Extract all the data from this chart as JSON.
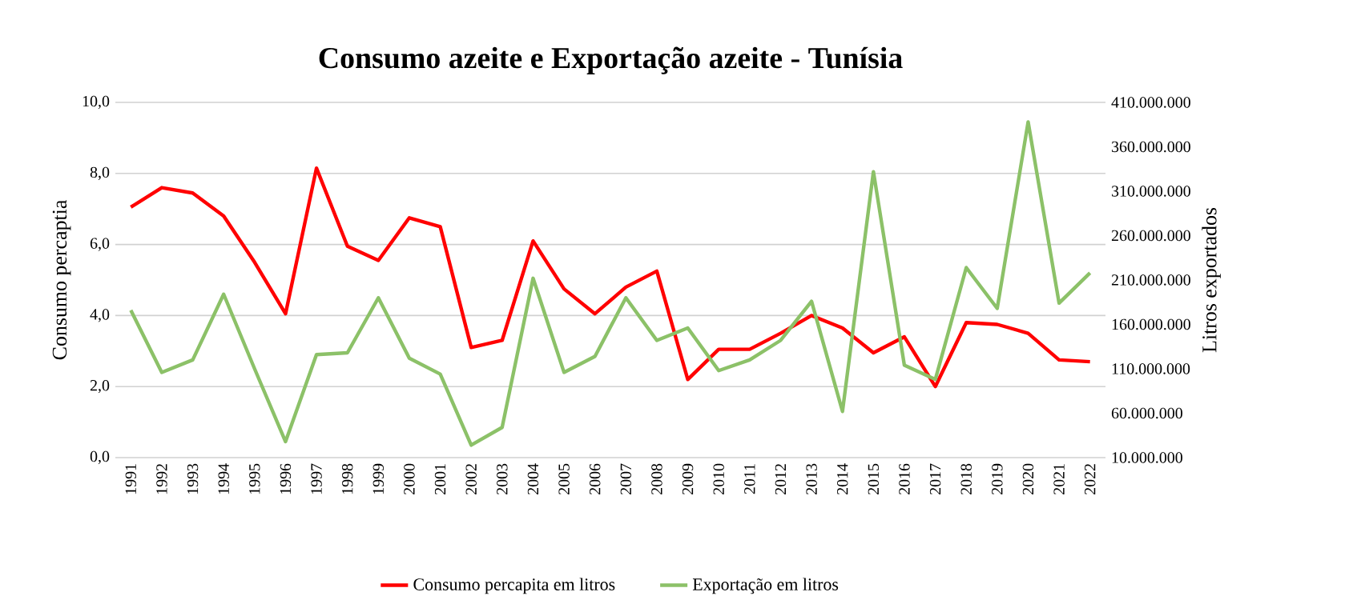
{
  "chart_data": {
    "type": "line",
    "title": "Consumo azeite e Exportação azeite - Tunísia",
    "ylabel": "Consumo percaptia",
    "y2label": "Litros exportados",
    "categories": [
      "1991",
      "1992",
      "1993",
      "1994",
      "1995",
      "1996",
      "1997",
      "1998",
      "1999",
      "2000",
      "2001",
      "2002",
      "2003",
      "2004",
      "2005",
      "2006",
      "2007",
      "2008",
      "2009",
      "2010",
      "2011",
      "2012",
      "2013",
      "2014",
      "2015",
      "2016",
      "2017",
      "2018",
      "2019",
      "2020",
      "2021",
      "2022"
    ],
    "series": [
      {
        "name": "Consumo percapita em litros",
        "color": "#ff0000",
        "values": [
          7.05,
          7.6,
          7.45,
          6.8,
          5.5,
          4.05,
          8.15,
          5.95,
          5.55,
          6.75,
          6.5,
          3.1,
          3.3,
          6.1,
          4.75,
          4.05,
          4.8,
          5.25,
          2.2,
          3.05,
          3.05,
          3.5,
          4.0,
          3.65,
          2.95,
          3.4,
          2.0,
          3.8,
          3.75,
          3.5,
          2.75,
          2.7
        ]
      },
      {
        "name": "Exportação em litros",
        "color": "#8cc168",
        "axis": "y2",
        "values": [
          176000000,
          106000000,
          120000000,
          194000000,
          110000000,
          28000000,
          126000000,
          128000000,
          190000000,
          122000000,
          104000000,
          24000000,
          44000000,
          212000000,
          106000000,
          124000000,
          190000000,
          142000000,
          156000000,
          108000000,
          120000000,
          142000000,
          186000000,
          62000000,
          332000000,
          114000000,
          98000000,
          224000000,
          178000000,
          388000000,
          184000000,
          218000000
        ]
      }
    ],
    "ylim": [
      0,
      10
    ],
    "yticks": [
      {
        "value": 0,
        "label": "0,0"
      },
      {
        "value": 2,
        "label": "2,0"
      },
      {
        "value": 4,
        "label": "4,0"
      },
      {
        "value": 6,
        "label": "6,0"
      },
      {
        "value": 8,
        "label": "8,0"
      },
      {
        "value": 10,
        "label": "10,0"
      }
    ],
    "y2lim": [
      10000000,
      410000000
    ],
    "y2ticks": [
      {
        "value": 10000000,
        "label": "10.000.000"
      },
      {
        "value": 60000000,
        "label": "60.000.000"
      },
      {
        "value": 110000000,
        "label": "110.000.000"
      },
      {
        "value": 160000000,
        "label": "160.000.000"
      },
      {
        "value": 210000000,
        "label": "210.000.000"
      },
      {
        "value": 260000000,
        "label": "260.000.000"
      },
      {
        "value": 310000000,
        "label": "310.000.000"
      },
      {
        "value": 360000000,
        "label": "360.000.000"
      },
      {
        "value": 410000000,
        "label": "410.000.000"
      }
    ],
    "grid": "y",
    "legend": "bottom",
    "marker": "none",
    "line_style": "solid"
  }
}
